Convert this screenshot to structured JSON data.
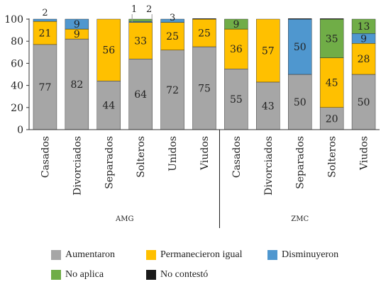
{
  "chart_data": {
    "type": "bar",
    "stacked": true,
    "categories": [
      "Casados",
      "Divorciados",
      "Separados",
      "Solteros",
      "Unidos",
      "Viudos",
      "Casados",
      "Divorciados",
      "Separados",
      "Solteros",
      "Viudos"
    ],
    "groups": [
      {
        "label": "AMG",
        "count": 6
      },
      {
        "label": "ZMC",
        "count": 5
      }
    ],
    "series": [
      {
        "name": "Aumentaron",
        "color": "#a6a6a6",
        "values": [
          77,
          82,
          44,
          64,
          72,
          75,
          55,
          43,
          50,
          20,
          50
        ],
        "labels": [
          "77",
          "82",
          "44",
          "64",
          "72",
          "75",
          "55",
          "43",
          "50",
          "20",
          "50"
        ]
      },
      {
        "name": "Permanecieron igual",
        "color": "#ffc000",
        "values": [
          21,
          9,
          56,
          33,
          25,
          25,
          36,
          57,
          0,
          45,
          28
        ],
        "labels": [
          "21",
          "9",
          "56",
          "33",
          "25",
          "25",
          "36",
          "57",
          "",
          "45",
          "28"
        ]
      },
      {
        "name": "Disminuyeron",
        "color": "#4f97cf",
        "values": [
          2,
          9,
          0,
          1,
          3,
          0,
          0,
          0,
          50,
          0,
          9
        ],
        "labels": [
          "",
          "9",
          "",
          "",
          "",
          "",
          "",
          "",
          "50",
          "",
          "9"
        ]
      },
      {
        "name": "No aplica",
        "color": "#70ad47",
        "values": [
          0,
          0,
          0,
          2,
          0,
          0,
          9,
          0,
          0,
          35,
          13
        ],
        "labels": [
          "",
          "",
          "",
          "",
          "",
          "",
          "9",
          "",
          "",
          "35",
          "13"
        ]
      },
      {
        "name": "No contestó",
        "color": "#1a1a1a",
        "values": [
          0,
          0,
          0,
          0,
          0,
          0.5,
          0,
          0,
          0.5,
          0.5,
          0
        ],
        "labels": [
          "",
          "",
          "",
          "",
          "",
          "",
          "",
          "",
          "",
          "",
          ""
        ]
      }
    ],
    "callouts": [
      {
        "category_index": 0,
        "text": "2"
      },
      {
        "category_index": 3,
        "text": "1"
      },
      {
        "category_index": 3,
        "text": "2"
      },
      {
        "category_index": 4,
        "text": "3"
      }
    ],
    "yticks": [
      "0",
      "20",
      "40",
      "60",
      "80",
      "100"
    ],
    "ylim": [
      0,
      100
    ],
    "legend_position": "bottom",
    "grid": false
  }
}
